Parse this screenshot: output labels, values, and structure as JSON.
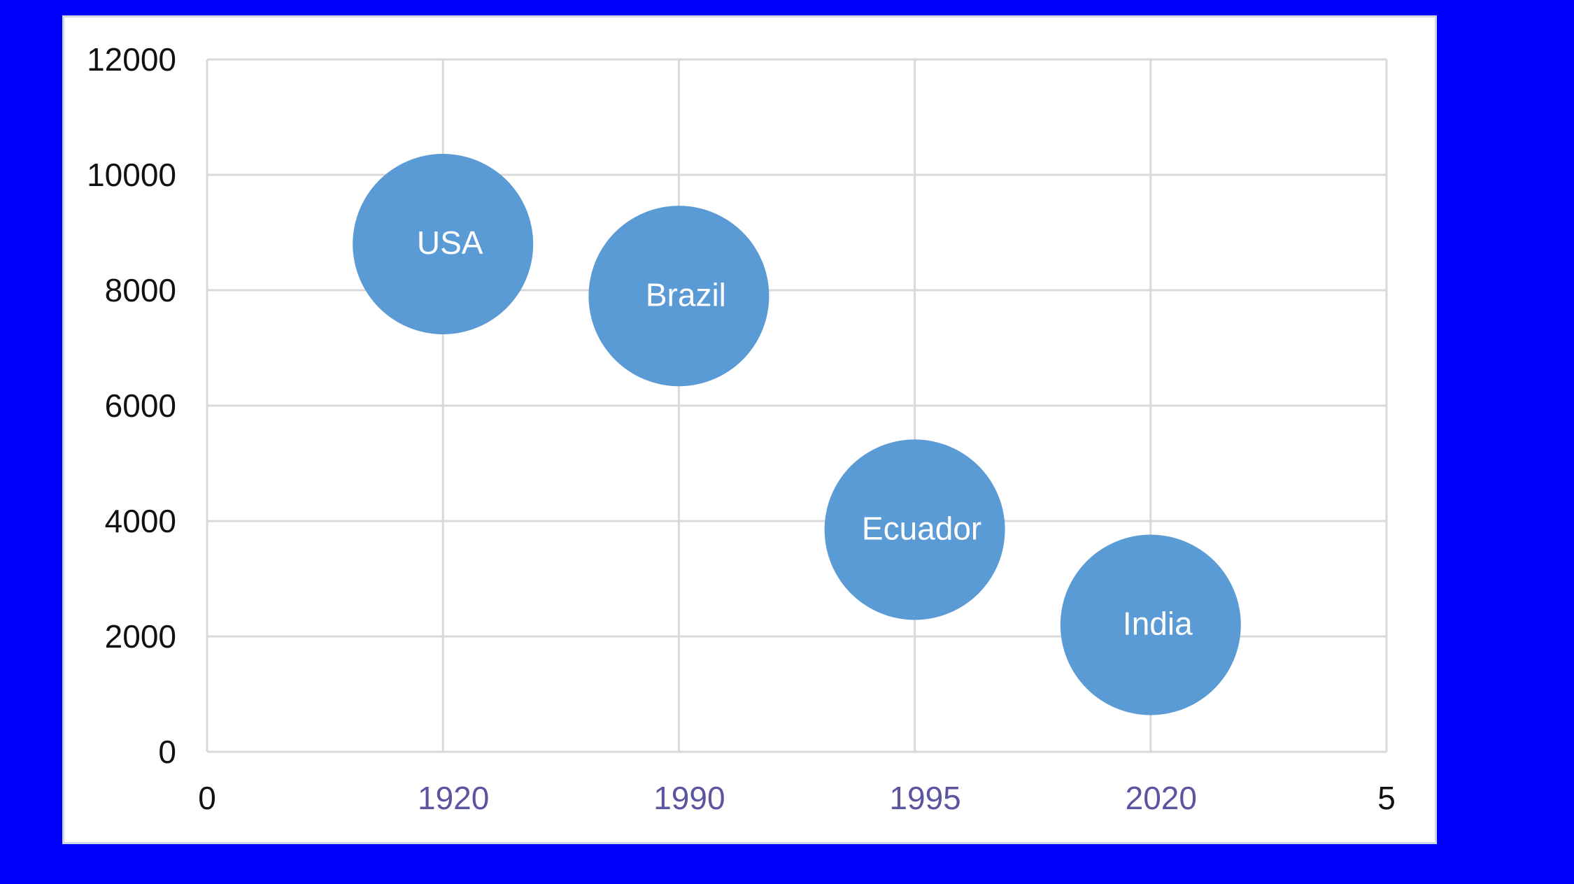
{
  "chart_data": {
    "type": "scatter",
    "title": "",
    "xlabel": "",
    "ylabel": "",
    "xlim": [
      0,
      5
    ],
    "ylim": [
      0,
      12000
    ],
    "yticks": [
      0,
      2000,
      4000,
      6000,
      8000,
      10000,
      12000
    ],
    "xtick_labels": [
      {
        "x": 0,
        "label": "0",
        "style": "number"
      },
      {
        "x": 1,
        "label": "1920",
        "style": "category"
      },
      {
        "x": 2,
        "label": "1990",
        "style": "category"
      },
      {
        "x": 3,
        "label": "1995",
        "style": "category"
      },
      {
        "x": 4,
        "label": "2020",
        "style": "category"
      },
      {
        "x": 5,
        "label": "5",
        "style": "number"
      }
    ],
    "grid": true,
    "bubble_color": "#5b9bd5",
    "points": [
      {
        "label": "USA",
        "x": 1,
        "y": 8800
      },
      {
        "label": "Brazil",
        "x": 2,
        "y": 7900
      },
      {
        "label": "Ecuador",
        "x": 3,
        "y": 3850
      },
      {
        "label": "India",
        "x": 4,
        "y": 2200
      }
    ]
  }
}
